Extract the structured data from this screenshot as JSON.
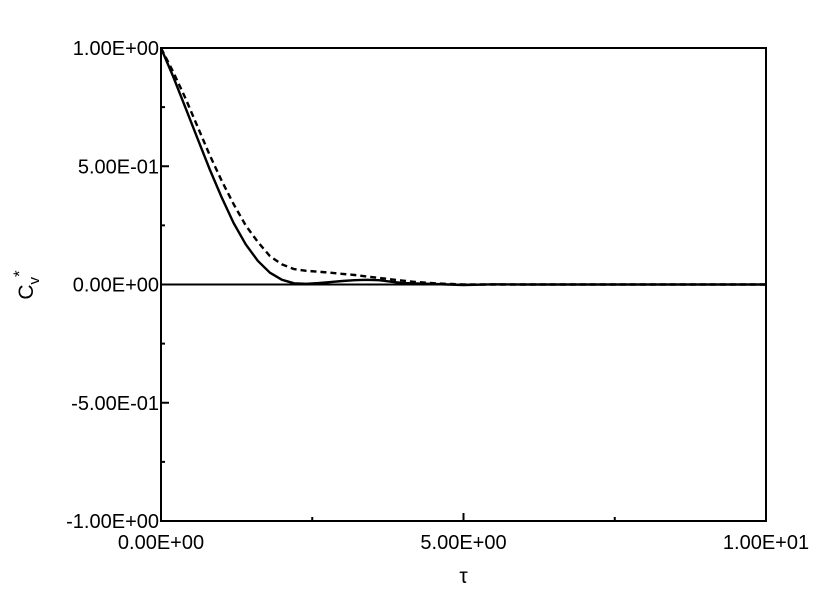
{
  "chart_data": {
    "type": "line",
    "title": "",
    "xlabel": "τ",
    "ylabel_main": "C",
    "ylabel_sub": "v",
    "ylabel_sup": "*",
    "xlim": [
      0,
      10
    ],
    "ylim": [
      -1,
      1
    ],
    "grid": false,
    "x_ticks": [
      {
        "value": 0,
        "label": "0.00E+00"
      },
      {
        "value": 5,
        "label": "5.00E+00"
      },
      {
        "value": 10,
        "label": "1.00E+01"
      }
    ],
    "y_ticks": [
      {
        "value": 1,
        "label": "1.00E+00"
      },
      {
        "value": 0.5,
        "label": "5.00E-01"
      },
      {
        "value": 0,
        "label": "0.00E+00"
      },
      {
        "value": -0.5,
        "label": "-5.00E-01"
      },
      {
        "value": -1,
        "label": "-1.00E+00"
      }
    ],
    "series": [
      {
        "style": "solid",
        "x": [
          0,
          0.2,
          0.4,
          0.6,
          0.8,
          1.0,
          1.2,
          1.4,
          1.6,
          1.8,
          2.0,
          2.2,
          2.4,
          2.6,
          2.8,
          3.0,
          3.2,
          3.4,
          3.6,
          3.8,
          4.0,
          4.5,
          5.0,
          5.5,
          6.0,
          7.0,
          8.0,
          9.0,
          10.0
        ],
        "y": [
          1.0,
          0.88,
          0.75,
          0.62,
          0.49,
          0.37,
          0.26,
          0.17,
          0.1,
          0.05,
          0.02,
          0.005,
          0.003,
          0.006,
          0.01,
          0.015,
          0.018,
          0.02,
          0.018,
          0.012,
          0.006,
          0.002,
          -0.002,
          0.001,
          0.0,
          0.0,
          0.0,
          0.0,
          0.0
        ]
      },
      {
        "style": "dashed",
        "x": [
          0,
          0.2,
          0.4,
          0.6,
          0.8,
          1.0,
          1.2,
          1.4,
          1.6,
          1.8,
          2.0,
          2.2,
          2.4,
          2.6,
          2.8,
          3.0,
          3.2,
          3.4,
          3.6,
          3.8,
          4.0,
          4.2,
          4.4,
          4.6,
          4.8,
          5.0,
          5.5,
          6.0,
          7.0,
          8.0,
          9.0,
          10.0
        ],
        "y": [
          1.0,
          0.9,
          0.79,
          0.67,
          0.55,
          0.44,
          0.34,
          0.25,
          0.18,
          0.12,
          0.085,
          0.065,
          0.058,
          0.054,
          0.05,
          0.045,
          0.04,
          0.034,
          0.028,
          0.022,
          0.016,
          0.011,
          0.007,
          0.004,
          0.002,
          0.0,
          0.0,
          0.0,
          0.0,
          0.0,
          0.0,
          0.0
        ]
      }
    ]
  }
}
